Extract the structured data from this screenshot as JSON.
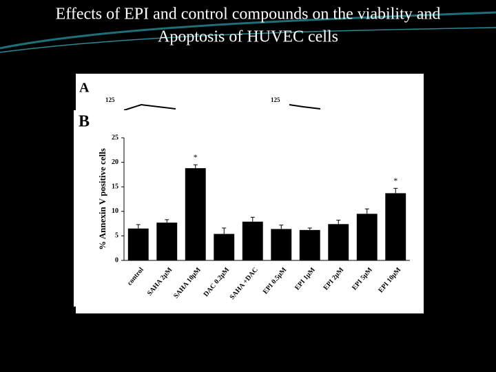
{
  "slide": {
    "title": [
      "Effects of EPI and control compounds on the viability  and",
      "Apoptosis of HUVEC cells"
    ]
  },
  "panel_a": {
    "label": "A",
    "ytick_labels": [
      "125",
      "125"
    ]
  },
  "chart_data": {
    "type": "bar",
    "panel_label": "B",
    "y_label": "% Annexin V positive cells",
    "categories": [
      "control",
      "SAHA 2μM",
      "SAHA 10μM",
      "DAC 0.2μM",
      "SAHA +DAC",
      "EPI 0.5μM",
      "EPI 1μM",
      "EPI 2μM",
      "EPI 5μM",
      "EPI 10μM"
    ],
    "values": [
      6.5,
      7.7,
      18.8,
      5.4,
      7.9,
      6.4,
      6.2,
      7.4,
      9.5,
      13.7
    ],
    "errors": [
      0.8,
      0.6,
      0.7,
      1.2,
      0.9,
      0.8,
      0.4,
      0.8,
      1.0,
      1.0
    ],
    "color": "#000000",
    "ylim": [
      0,
      25
    ],
    "yticks": [
      0,
      5,
      10,
      15,
      20,
      25
    ],
    "annotations": [
      {
        "text": "*",
        "category": "SAHA 10μM"
      },
      {
        "text": "*",
        "category": "EPI 10μM"
      }
    ]
  }
}
